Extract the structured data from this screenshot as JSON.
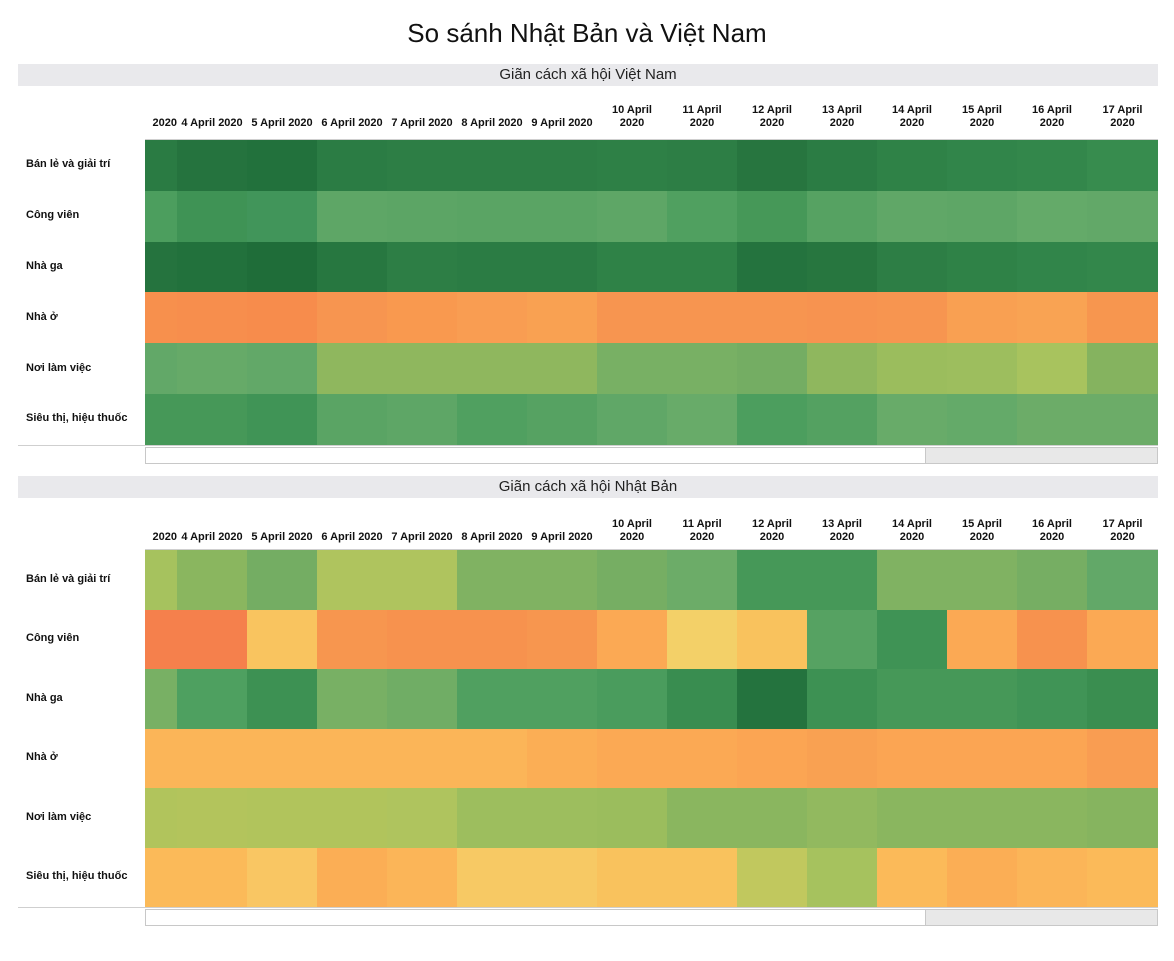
{
  "title": "So sánh Nhật Bản và Việt Nam",
  "chart_data": [
    {
      "type": "heatmap",
      "title": "Giãn cách xã hội Việt Nam",
      "x": [
        "2020",
        "4 April 2020",
        "5 April 2020",
        "6 April 2020",
        "7 April 2020",
        "8 April 2020",
        "9 April 2020",
        "10 April 2020",
        "11 April 2020",
        "12 April 2020",
        "13 April 2020",
        "14 April 2020",
        "15 April 2020",
        "16 April 2020",
        "17 April 2020"
      ],
      "y": [
        "Bán lẻ và giải trí",
        "Công viên",
        "Nhà ga",
        "Nhà ở",
        "Nơi làm việc",
        "Siêu thị, hiệu thuốc"
      ],
      "colors": [
        [
          "#2a7b43",
          "#25733e",
          "#22713c",
          "#2b7c44",
          "#2d7e45",
          "#2d7e45",
          "#2d7e45",
          "#2e8046",
          "#2d7e45",
          "#27753f",
          "#2b7c44",
          "#2f8247",
          "#31854a",
          "#33874b",
          "#378c4e"
        ],
        [
          "#4c9e5e",
          "#3f9355",
          "#41955a",
          "#5ea666",
          "#5ca565",
          "#5aa464",
          "#5aa464",
          "#5ea666",
          "#50a060",
          "#469858",
          "#56a262",
          "#60a767",
          "#5ea666",
          "#64aa69",
          "#62a868"
        ],
        [
          "#25733e",
          "#22713c",
          "#1f6d39",
          "#277740",
          "#2d7e45",
          "#2b7c44",
          "#2b7c44",
          "#2f8247",
          "#2f8247",
          "#24733e",
          "#27763f",
          "#2d7e45",
          "#2f8247",
          "#31854a",
          "#33874b"
        ],
        [
          "#f7904d",
          "#f78e4d",
          "#f78c4c",
          "#f79550",
          "#f9994f",
          "#f99d52",
          "#f9a152",
          "#f79550",
          "#f79550",
          "#f79550",
          "#f79350",
          "#f79550",
          "#f9a052",
          "#f9a353",
          "#f7964f"
        ],
        [
          "#62a868",
          "#66aa68",
          "#62a868",
          "#8fb75e",
          "#8fb75e",
          "#8fb75e",
          "#8fb75e",
          "#78b064",
          "#78b064",
          "#74ad63",
          "#8fb75e",
          "#9bbd5d",
          "#9dbe5e",
          "#a8c35e",
          "#85b35f"
        ],
        [
          "#469858",
          "#469858",
          "#409456",
          "#5aa464",
          "#5ea666",
          "#50a060",
          "#56a262",
          "#60a767",
          "#68ab69",
          "#4c9e5e",
          "#54a161",
          "#68ab69",
          "#64aa69",
          "#6cac68",
          "#6cac68"
        ]
      ]
    },
    {
      "type": "heatmap",
      "title": "Giãn cách xã hội Nhật Bản",
      "x": [
        "2020",
        "4 April 2020",
        "5 April 2020",
        "6 April 2020",
        "7 April 2020",
        "8 April 2020",
        "9 April 2020",
        "10 April 2020",
        "11 April 2020",
        "12 April 2020",
        "13 April 2020",
        "14 April 2020",
        "15 April 2020",
        "16 April 2020",
        "17 April 2020"
      ],
      "y": [
        "Bán lẻ và giải trí",
        "Công viên",
        "Nhà ga",
        "Nhà ở",
        "Nơi làm việc",
        "Siêu thị, hiệu thuốc"
      ],
      "colors": [
        [
          "#a6c25e",
          "#8ab65f",
          "#74ad63",
          "#afc45e",
          "#afc45e",
          "#80b262",
          "#80b262",
          "#76ae63",
          "#6cac68",
          "#469858",
          "#469858",
          "#80b262",
          "#80b262",
          "#76ae63",
          "#62a868"
        ],
        [
          "#f5804c",
          "#f5804c",
          "#f9c45f",
          "#f7964f",
          "#f7924e",
          "#f7924e",
          "#f7964f",
          "#fba954",
          "#f3d068",
          "#f9c25d",
          "#56a262",
          "#3f9355",
          "#fba954",
          "#f7924e",
          "#fba954"
        ],
        [
          "#78b064",
          "#4ea060",
          "#3d9153",
          "#78b064",
          "#70ad65",
          "#50a060",
          "#50a060",
          "#4a9c5d",
          "#398d50",
          "#24733e",
          "#3d9153",
          "#469858",
          "#469858",
          "#409456",
          "#3a8e50"
        ],
        [
          "#fbb558",
          "#fbb558",
          "#fbb558",
          "#fbb558",
          "#fbb558",
          "#fbb558",
          "#fbae55",
          "#fba954",
          "#fba954",
          "#fba553",
          "#f9a152",
          "#fba553",
          "#fba553",
          "#fba553",
          "#f99d52"
        ],
        [
          "#b1c45c",
          "#b3c45c",
          "#b1c45c",
          "#b1c45c",
          "#afc45e",
          "#9dbe5e",
          "#9dbe5e",
          "#9bbd5d",
          "#8ab65f",
          "#8ab65f",
          "#92b95f",
          "#8ab65f",
          "#8ab65f",
          "#8ab65f",
          "#86b45f"
        ],
        [
          "#fbba59",
          "#fbba59",
          "#f9c663",
          "#fbae55",
          "#fbb558",
          "#f7c964",
          "#f7c964",
          "#f9c25d",
          "#f9c25d",
          "#c1c85e",
          "#a6c25e",
          "#fbba59",
          "#fbae55",
          "#fbb558",
          "#fbba59"
        ]
      ]
    }
  ]
}
